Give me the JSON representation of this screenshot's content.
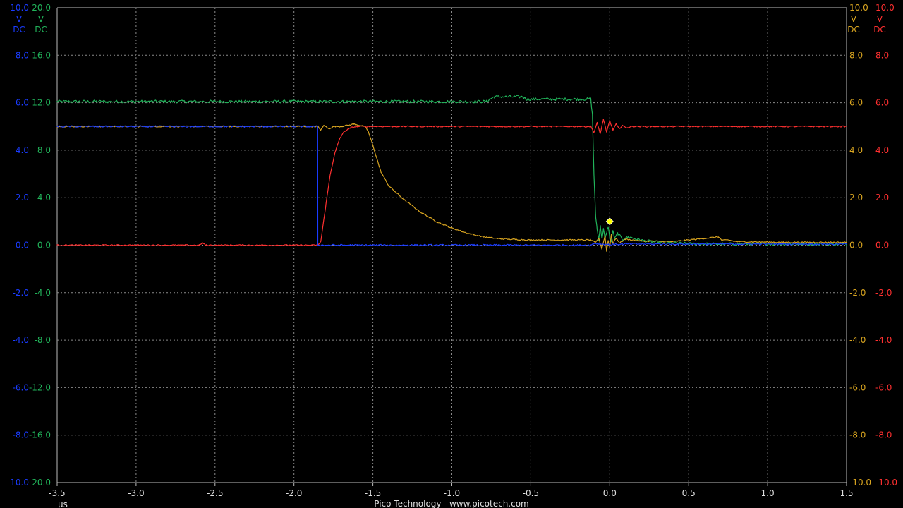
{
  "footer": {
    "x_unit": "µs",
    "brand": "Pico Technology   www.picotech.com"
  },
  "chart_data": {
    "type": "line",
    "grid": true,
    "background": "#000000",
    "grid_color": "#8a8a8a",
    "x": {
      "range": [
        -3.5,
        1.5
      ],
      "unit": "µs",
      "ticks": [
        -3.5,
        -3.0,
        -2.5,
        -2.0,
        -1.5,
        -1.0,
        -0.5,
        0.0,
        0.5,
        1.0,
        1.5
      ],
      "tick_labels": [
        "-3.5",
        "-3.0",
        "-2.5",
        "-2.0",
        "-1.5",
        "-1.0",
        "-0.5",
        "0.0",
        "0.5",
        "1.0",
        "1.5"
      ]
    },
    "axes": [
      {
        "id": "A",
        "side": "left",
        "order": 0,
        "color": "#1a3cff",
        "range": [
          -10,
          10
        ],
        "unit_lines": [
          "V",
          "DC"
        ],
        "tick_labels": [
          "10.0",
          "8.0",
          "6.0",
          "4.0",
          "2.0",
          "0.0",
          "-2.0",
          "-4.0",
          "-6.0",
          "-8.0",
          "-10.0"
        ]
      },
      {
        "id": "B",
        "side": "left",
        "order": 1,
        "color": "#21b35a",
        "range": [
          -20,
          20
        ],
        "unit_lines": [
          "V",
          "DC"
        ],
        "tick_labels": [
          "20.0",
          "16.0",
          "12.0",
          "8.0",
          "4.0",
          "0.0",
          "-4.0",
          "-8.0",
          "-12.0",
          "-16.0",
          "-20.0"
        ]
      },
      {
        "id": "C",
        "side": "right",
        "order": 0,
        "color": "#d9a520",
        "range": [
          -10,
          10
        ],
        "unit_lines": [
          "V",
          "DC"
        ],
        "tick_labels": [
          "10.0",
          "8.0",
          "6.0",
          "4.0",
          "2.0",
          "0.0",
          "-2.0",
          "-4.0",
          "-6.0",
          "-8.0",
          "-10.0"
        ]
      },
      {
        "id": "D",
        "side": "right",
        "order": 1,
        "color": "#ff3030",
        "range": [
          -10,
          10
        ],
        "unit_lines": [
          "V",
          "DC"
        ],
        "tick_labels": [
          "10.0",
          "8.0",
          "6.0",
          "4.0",
          "2.0",
          "0.0",
          "-2.0",
          "-4.0",
          "-6.0",
          "-8.0",
          "-10.0"
        ]
      }
    ],
    "series": [
      {
        "axis": "B",
        "color": "#21b35a",
        "noise": 0.06,
        "x": [
          -3.5,
          -0.78,
          -0.76,
          -0.73,
          -0.55,
          -0.53,
          -0.12,
          -0.11,
          -0.1,
          -0.09,
          -0.08,
          -0.07,
          -0.06,
          -0.05,
          -0.04,
          -0.03,
          -0.02,
          -0.01,
          0.0,
          0.01,
          0.02,
          0.03,
          0.05,
          0.08,
          0.12,
          0.2,
          0.3,
          0.5,
          0.7,
          1.5
        ],
        "y": [
          12.1,
          12.1,
          12.3,
          12.5,
          12.5,
          12.3,
          12.3,
          11.0,
          6.0,
          2.5,
          1.4,
          0.4,
          1.7,
          0.5,
          1.4,
          0.5,
          1.0,
          1.6,
          0.6,
          0.3,
          1.3,
          0.5,
          1.0,
          0.5,
          0.7,
          0.4,
          0.25,
          0.12,
          0.1,
          0.1
        ]
      },
      {
        "axis": "C",
        "color": "#d9a520",
        "noise": 0.025,
        "x": [
          -3.5,
          -1.85,
          -1.83,
          -1.81,
          -1.78,
          -1.75,
          -1.7,
          -1.62,
          -1.55,
          -1.53,
          -1.5,
          -1.45,
          -1.4,
          -1.3,
          -1.2,
          -1.1,
          -1.0,
          -0.9,
          -0.8,
          -0.7,
          -0.6,
          -0.5,
          -0.3,
          -0.12,
          -0.09,
          -0.07,
          -0.05,
          -0.03,
          -0.02,
          -0.01,
          0.0,
          0.01,
          0.02,
          0.04,
          0.06,
          0.1,
          0.2,
          0.4,
          0.69,
          0.71,
          0.75,
          0.8,
          1.1,
          1.5
        ],
        "y": [
          5.0,
          5.0,
          4.85,
          5.05,
          4.9,
          5.0,
          5.0,
          5.1,
          5.0,
          4.8,
          4.2,
          3.1,
          2.5,
          1.9,
          1.4,
          1.0,
          0.72,
          0.5,
          0.35,
          0.27,
          0.24,
          0.22,
          0.22,
          0.22,
          0.1,
          0.3,
          -0.15,
          0.4,
          -0.25,
          0.2,
          -0.1,
          0.45,
          0.05,
          0.3,
          0.1,
          0.25,
          0.18,
          0.15,
          0.35,
          0.2,
          0.22,
          0.15,
          0.12,
          0.12
        ]
      },
      {
        "axis": "D",
        "color": "#ff3030",
        "noise": 0.025,
        "x": [
          -3.5,
          -2.6,
          -2.58,
          -2.56,
          -1.85,
          -1.83,
          -1.8,
          -1.77,
          -1.74,
          -1.71,
          -1.68,
          -1.64,
          -1.6,
          -1.3,
          -0.12,
          -0.1,
          -0.08,
          -0.06,
          -0.04,
          -0.02,
          0.0,
          0.02,
          0.04,
          0.06,
          0.08,
          0.1,
          0.15,
          0.4,
          1.5
        ],
        "y": [
          0.0,
          0.0,
          0.1,
          0.0,
          0.0,
          0.15,
          1.6,
          3.0,
          3.9,
          4.5,
          4.8,
          4.95,
          5.0,
          5.0,
          5.0,
          4.75,
          5.15,
          4.7,
          5.3,
          4.75,
          5.25,
          4.85,
          5.1,
          4.9,
          5.05,
          4.95,
          5.0,
          5.0,
          5.0
        ]
      },
      {
        "axis": "A",
        "color": "#1a3cff",
        "noise": 0.035,
        "x": [
          -3.5,
          -1.85,
          -1.849,
          -1.84,
          -0.12,
          -0.1,
          0.0,
          0.1,
          0.5,
          1.5
        ],
        "y": [
          5.0,
          5.0,
          0.0,
          0.0,
          0.0,
          0.08,
          0.02,
          0.05,
          0.05,
          0.05
        ]
      }
    ],
    "trigger_marker": {
      "x": 0.0,
      "y": 1.0,
      "axis": "C",
      "color": "#ffff00"
    }
  }
}
